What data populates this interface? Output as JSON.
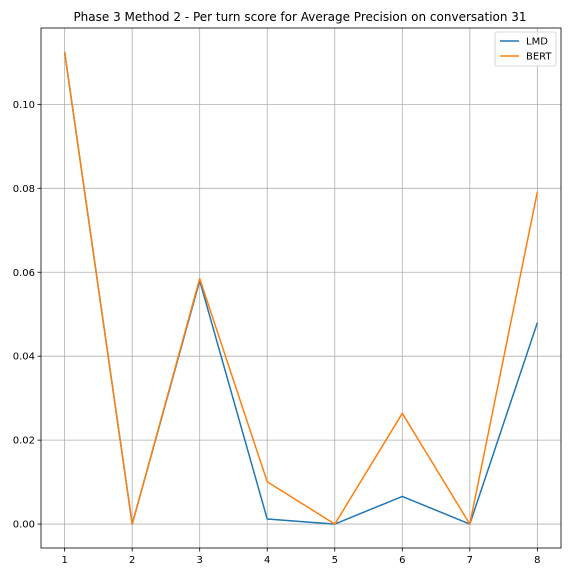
{
  "chart_data": {
    "type": "line",
    "title": "Phase 3 Method 2 - Per turn score for Average Precision on conversation 31",
    "xlabel": "",
    "ylabel": "",
    "x": [
      1,
      2,
      3,
      4,
      5,
      6,
      7,
      8
    ],
    "x_ticks": [
      "1",
      "2",
      "3",
      "4",
      "5",
      "6",
      "7",
      "8"
    ],
    "y_ticks": [
      "0.00",
      "0.02",
      "0.04",
      "0.06",
      "0.08",
      "0.10"
    ],
    "y_tick_values": [
      0.0,
      0.02,
      0.04,
      0.06,
      0.08,
      0.1
    ],
    "xlim": [
      0.65,
      8.35
    ],
    "ylim": [
      -0.0057,
      0.1182
    ],
    "grid": true,
    "legend_position": "top-right",
    "series": [
      {
        "name": "LMD",
        "color": "#1f77b4",
        "values": [
          0.1125,
          0.0,
          0.058,
          0.0012,
          0.0,
          0.0066,
          0.0,
          0.048
        ]
      },
      {
        "name": "BERT",
        "color": "#ff7f0e",
        "values": [
          0.1125,
          0.0,
          0.0585,
          0.0101,
          0.0,
          0.0264,
          0.0,
          0.0792
        ]
      }
    ]
  }
}
